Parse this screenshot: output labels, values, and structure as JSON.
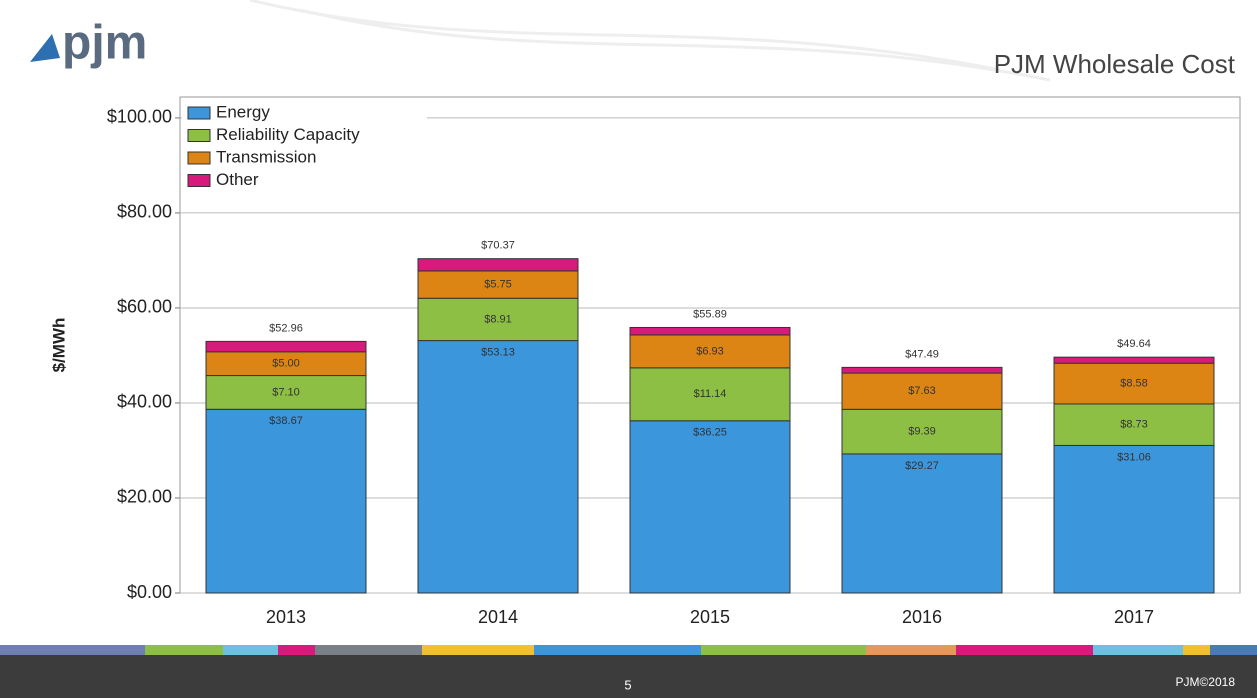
{
  "header": {
    "logo": "pjm",
    "title": "PJM Wholesale Cost"
  },
  "chart_data": {
    "type": "stacked_bar",
    "y_label": "$/MWh",
    "categories": [
      "2013",
      "2014",
      "2015",
      "2016",
      "2017"
    ],
    "series": [
      {
        "name": "Energy",
        "color": "#3c96dc",
        "values": [
          38.67,
          53.13,
          36.25,
          29.27,
          31.06
        ],
        "value_labels": [
          "$38.67",
          "$53.13",
          "$36.25",
          "$29.27",
          "$31.06"
        ]
      },
      {
        "name": "Reliability Capacity",
        "color": "#8cbf44",
        "values": [
          7.1,
          8.91,
          11.14,
          9.39,
          8.73
        ],
        "value_labels": [
          "$7.10",
          "$8.91",
          "$11.14",
          "$9.39",
          "$8.73"
        ]
      },
      {
        "name": "Transmission",
        "color": "#dc8514",
        "values": [
          5.0,
          5.75,
          6.93,
          7.63,
          8.58
        ],
        "value_labels": [
          "$5.00",
          "$5.75",
          "$6.93",
          "$7.63",
          "$8.58"
        ]
      },
      {
        "name": "Other",
        "color": "#d91a7d",
        "values": [
          2.19,
          2.58,
          1.57,
          1.2,
          1.27
        ]
      }
    ],
    "totals": [
      52.96,
      70.37,
      55.89,
      47.49,
      49.64
    ],
    "total_labels": [
      "$52.96",
      "$70.37",
      "$55.89",
      "$47.49",
      "$49.64"
    ],
    "ylim": [
      0,
      104.4
    ],
    "yticks": [
      {
        "value": 0,
        "label": "$0.00"
      },
      {
        "value": 20,
        "label": "$20.00"
      },
      {
        "value": 40,
        "label": "$40.00"
      },
      {
        "value": 60,
        "label": "$60.00"
      },
      {
        "value": 80,
        "label": "$80.00"
      },
      {
        "value": 100,
        "label": "$100.00"
      }
    ],
    "grid": true,
    "legend": "top-left"
  },
  "footer": {
    "page": "5",
    "copyright": "PJM©2018"
  }
}
